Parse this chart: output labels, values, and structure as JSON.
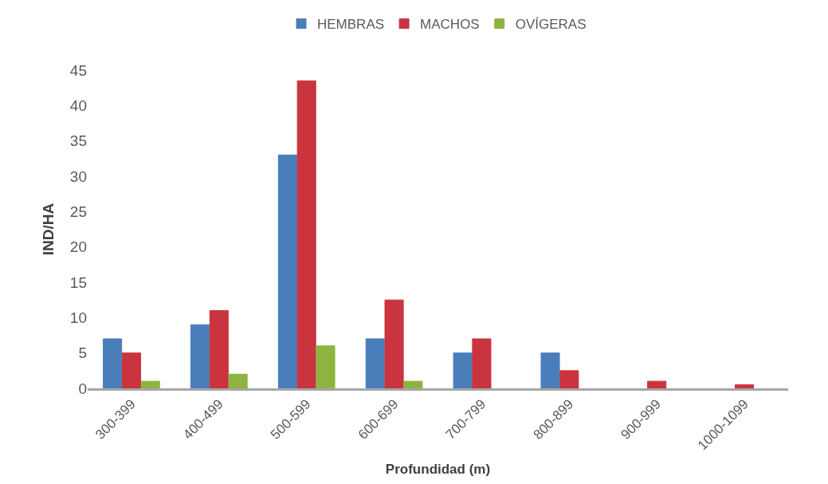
{
  "chart_data": {
    "type": "bar",
    "xlabel": "Profundidad (m)",
    "ylabel": "IND/HA",
    "categories": [
      "300-399",
      "400-499",
      "500-599",
      "600-699",
      "700-799",
      "800-899",
      "900-999",
      "1000-1099"
    ],
    "series": [
      {
        "name": "HEMBRAS",
        "color": "#4a7ebb",
        "values": [
          7,
          9,
          33,
          7,
          5,
          5,
          null,
          null
        ]
      },
      {
        "name": "MACHOS",
        "color": "#c9343f",
        "values": [
          5,
          11,
          43.5,
          12.5,
          7,
          2.5,
          1,
          0.5
        ]
      },
      {
        "name": "OVÍGERAS",
        "color": "#8db43e",
        "values": [
          1,
          2,
          6,
          1,
          null,
          null,
          null,
          null
        ]
      }
    ],
    "ylim": [
      0,
      45
    ],
    "yticks": [
      0,
      5,
      10,
      15,
      20,
      25,
      30,
      35,
      40,
      45
    ],
    "legend": "top"
  }
}
